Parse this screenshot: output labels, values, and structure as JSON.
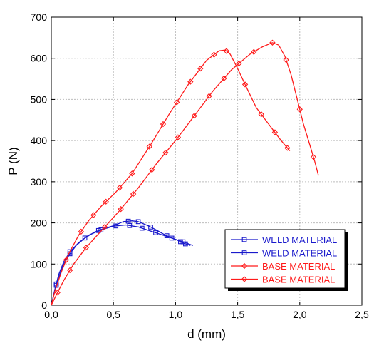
{
  "chart_data": {
    "type": "line",
    "xlabel": "d (mm)",
    "ylabel": "P (N)",
    "xlim": [
      0,
      2.5
    ],
    "ylim": [
      0,
      700
    ],
    "x_ticks": [
      "0,0",
      "0,5",
      "1,0",
      "1,5",
      "2,0",
      "2,5"
    ],
    "y_ticks": [
      "0",
      "100",
      "200",
      "300",
      "400",
      "500",
      "600",
      "700"
    ],
    "grid": true,
    "legend_position": "bottom-right",
    "series": [
      {
        "name": "WELD MATERIAL",
        "color": "#1a1acc",
        "marker": "square",
        "x": [
          0,
          0.02,
          0.05,
          0.1,
          0.15,
          0.2,
          0.27,
          0.35,
          0.42,
          0.5,
          0.58,
          0.65,
          0.7,
          0.78,
          0.85,
          0.92,
          1.0,
          1.07,
          1.12
        ],
        "y": [
          0,
          25,
          60,
          100,
          125,
          145,
          163,
          178,
          186,
          193,
          203,
          205,
          203,
          193,
          182,
          170,
          160,
          150,
          145
        ],
        "markers_x": [
          0.04,
          0.15,
          0.38,
          0.62,
          0.7,
          0.8,
          0.93,
          1.04,
          1.08
        ]
      },
      {
        "name": "WELD MATERIAL",
        "color": "#1a1acc",
        "marker": "square",
        "x": [
          0,
          0.03,
          0.06,
          0.1,
          0.15,
          0.22,
          0.3,
          0.4,
          0.5,
          0.6,
          0.7,
          0.8,
          0.9,
          1.0,
          1.08,
          1.14
        ],
        "y": [
          0,
          40,
          75,
          105,
          130,
          152,
          170,
          183,
          192,
          195,
          190,
          180,
          170,
          160,
          152,
          145
        ],
        "markers_x": [
          0.04,
          0.15,
          0.27,
          0.4,
          0.52,
          0.63,
          0.73,
          0.84,
          0.97,
          1.06
        ]
      },
      {
        "name": "BASE MATERIAL",
        "color": "#ff1a1a",
        "marker": "diamond",
        "x": [
          0,
          0.03,
          0.08,
          0.14,
          0.22,
          0.3,
          0.4,
          0.52,
          0.65,
          0.8,
          0.95,
          1.1,
          1.25,
          1.35,
          1.4,
          1.44,
          1.5,
          1.57,
          1.65,
          1.75,
          1.85,
          1.92
        ],
        "y": [
          0,
          35,
          80,
          125,
          170,
          205,
          240,
          275,
          320,
          390,
          465,
          535,
          595,
          618,
          620,
          610,
          575,
          530,
          480,
          440,
          400,
          375
        ],
        "markers_x": [
          0.12,
          0.24,
          0.34,
          0.44,
          0.55,
          0.65,
          0.79,
          0.9,
          1.01,
          1.12,
          1.2,
          1.31,
          1.41,
          1.56,
          1.69,
          1.8,
          1.9
        ]
      },
      {
        "name": "BASE MATERIAL",
        "color": "#ff1a1a",
        "marker": "diamond",
        "x": [
          0,
          0.04,
          0.1,
          0.18,
          0.28,
          0.4,
          0.55,
          0.7,
          0.85,
          1.0,
          1.15,
          1.3,
          1.45,
          1.6,
          1.7,
          1.78,
          1.83,
          1.88,
          1.93,
          1.98,
          2.03,
          2.08,
          2.12,
          2.15
        ],
        "y": [
          0,
          25,
          60,
          100,
          140,
          180,
          230,
          285,
          345,
          400,
          460,
          520,
          572,
          610,
          628,
          638,
          632,
          605,
          560,
          500,
          440,
          390,
          350,
          315
        ],
        "markers_x": [
          0.05,
          0.15,
          0.28,
          0.43,
          0.56,
          0.66,
          0.81,
          0.92,
          1.02,
          1.15,
          1.27,
          1.39,
          1.51,
          1.63,
          1.78,
          1.89,
          2.0,
          2.11
        ]
      }
    ]
  }
}
